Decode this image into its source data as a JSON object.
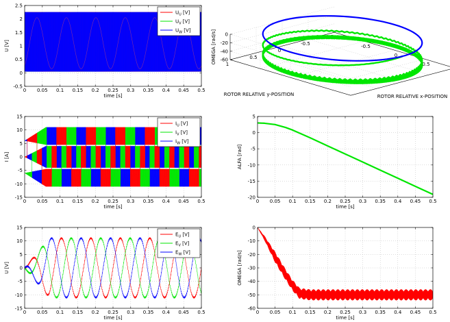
{
  "colors": {
    "red": "#ff0000",
    "green": "#00e600",
    "blue": "#0000ff",
    "purple": "#7d2aa8"
  },
  "chart_data": [
    {
      "id": "voltage",
      "type": "line",
      "ylabel": "U [V]",
      "xlabel": "time [s]",
      "xlim": [
        0,
        0.5
      ],
      "ylim": [
        -0.5,
        2.5
      ],
      "xticks": [
        0,
        0.05,
        0.1,
        0.15,
        0.2,
        0.25,
        0.3,
        0.35,
        0.4,
        0.45,
        0.5
      ],
      "xticklabels": [
        "0",
        "0.05",
        "0.1",
        "0.15",
        "0.2",
        "0.25",
        "0.3",
        "0.35",
        "0.4",
        "0.45",
        "0.5"
      ],
      "yticks": [
        -0.5,
        0,
        0.5,
        1,
        1.5,
        2,
        2.5
      ],
      "yticklabels": [
        "-0.5",
        "0",
        "0.5",
        "1",
        "1.5",
        "2",
        "2.5"
      ],
      "grid": true,
      "legend_position": "top-right",
      "series": [
        {
          "name": "U",
          "sub": "U",
          "unit": " [V]",
          "color": "#ff0000",
          "switching_low": 0.05,
          "switching_high": 2.25,
          "envelope_peak": 1.15
        },
        {
          "name": "U",
          "sub": "V",
          "unit": " [V]",
          "color": "#00e600",
          "switching_low": 0.05,
          "switching_high": 2.25,
          "envelope_peak": 1.15
        },
        {
          "name": "U",
          "sub": "W",
          "unit": " [V]",
          "color": "#0000ff",
          "switching_low": 0.05,
          "switching_high": 2.25,
          "envelope_peak": 1.15
        }
      ]
    },
    {
      "id": "omega3d",
      "type": "line3d",
      "zlabel": "OMEGA [rad/s]",
      "ylabel": "ROTOR RELATIVE y-POSITION",
      "xlabel": "ROTOR RELATIVE x-POSITION",
      "zticks": [
        0,
        -20,
        -40,
        -60
      ],
      "zticklabels": [
        "0",
        "-20",
        "-40",
        "-60"
      ],
      "yticks": [
        1,
        0.5,
        0,
        -0.5,
        -1
      ],
      "yticklabels": [
        "1",
        "0.5",
        "0",
        "-0.5",
        "-1"
      ],
      "xticks": [
        -1,
        -0.5,
        0,
        0.5,
        1
      ],
      "xticklabels": [
        "-1",
        "-0.5",
        "0",
        "0.5",
        "1"
      ],
      "series": [
        {
          "color": "#0000ff",
          "omega": 0
        },
        {
          "color": "#00e600",
          "omega_settle": -50,
          "omega_ripple": 6
        }
      ]
    },
    {
      "id": "current",
      "type": "line",
      "ylabel": "I [A]",
      "xlabel": "time [s]",
      "xlim": [
        0,
        0.5
      ],
      "ylim": [
        -15,
        15
      ],
      "xticks": [
        0,
        0.05,
        0.1,
        0.15,
        0.2,
        0.25,
        0.3,
        0.35,
        0.4,
        0.45,
        0.5
      ],
      "xticklabels": [
        "0",
        "0.05",
        "0.1",
        "0.15",
        "0.2",
        "0.25",
        "0.3",
        "0.35",
        "0.4",
        "0.45",
        "0.5"
      ],
      "yticks": [
        -15,
        -10,
        -5,
        0,
        5,
        10,
        15
      ],
      "yticklabels": [
        "-15",
        "-10",
        "-5",
        "0",
        "5",
        "10",
        "15"
      ],
      "grid": true,
      "legend_position": "top-right",
      "series": [
        {
          "name": "I",
          "sub": "U",
          "unit": " [V]",
          "color": "#ff0000",
          "peak": 12,
          "plateau": 6
        },
        {
          "name": "I",
          "sub": "V",
          "unit": " [V]",
          "color": "#00e600",
          "peak": 12,
          "plateau": 6
        },
        {
          "name": "I",
          "sub": "W",
          "unit": " [V]",
          "color": "#0000ff",
          "peak": 12,
          "plateau": 6
        }
      ]
    },
    {
      "id": "alfa",
      "type": "line",
      "ylabel": "ALFA [rad]",
      "xlabel": "time [s]",
      "xlim": [
        0,
        0.5
      ],
      "ylim": [
        -20,
        5
      ],
      "xticks": [
        0,
        0.05,
        0.1,
        0.15,
        0.2,
        0.25,
        0.3,
        0.35,
        0.4,
        0.45,
        0.5
      ],
      "xticklabels": [
        "0",
        "0.05",
        "0.1",
        "0.15",
        "0.2",
        "0.25",
        "0.3",
        "0.35",
        "0.4",
        "0.45",
        "0.5"
      ],
      "yticks": [
        -20,
        -15,
        -10,
        -5,
        0,
        5
      ],
      "yticklabels": [
        "-20",
        "-15",
        "-10",
        "-5",
        "0",
        "5"
      ],
      "grid": true,
      "series": [
        {
          "color": "#00e600",
          "x": [
            0,
            0.02,
            0.05,
            0.08,
            0.1,
            0.15,
            0.2,
            0.25,
            0.3,
            0.35,
            0.4,
            0.45,
            0.5
          ],
          "y": [
            3,
            2.9,
            2.5,
            1.6,
            0.8,
            -1.6,
            -4.1,
            -6.6,
            -9.1,
            -11.6,
            -14.1,
            -16.6,
            -19.1
          ]
        }
      ]
    },
    {
      "id": "emf",
      "type": "line",
      "ylabel": "U [V]",
      "xlabel": "time [s]",
      "xlim": [
        0,
        0.5
      ],
      "ylim": [
        -15,
        15
      ],
      "xticks": [
        0,
        0.05,
        0.1,
        0.15,
        0.2,
        0.25,
        0.3,
        0.35,
        0.4,
        0.45,
        0.5
      ],
      "xticklabels": [
        "0",
        "0.05",
        "0.1",
        "0.15",
        "0.2",
        "0.25",
        "0.3",
        "0.35",
        "0.4",
        "0.45",
        "0.5"
      ],
      "yticks": [
        -15,
        -10,
        -5,
        0,
        5,
        10,
        15
      ],
      "yticklabels": [
        "-15",
        "-10",
        "-5",
        "0",
        "5",
        "10",
        "15"
      ],
      "grid": true,
      "legend_position": "top-right",
      "series": [
        {
          "name": "E",
          "sub": "U",
          "unit": " [V]",
          "color": "#ff0000",
          "amplitude": 11,
          "phase_deg": 0
        },
        {
          "name": "E",
          "sub": "V",
          "unit": " [V]",
          "color": "#00e600",
          "amplitude": 11,
          "phase_deg": -120
        },
        {
          "name": "E",
          "sub": "W",
          "unit": " [V]",
          "color": "#0000ff",
          "amplitude": 11,
          "phase_deg": 120
        }
      ]
    },
    {
      "id": "omega",
      "type": "line",
      "ylabel": "OMEGA [rad/s]",
      "xlabel": "time [s]",
      "xlim": [
        0,
        0.5
      ],
      "ylim": [
        -60,
        0
      ],
      "xticks": [
        0,
        0.05,
        0.1,
        0.15,
        0.2,
        0.25,
        0.3,
        0.35,
        0.4,
        0.45,
        0.5
      ],
      "xticklabels": [
        "0",
        "0.05",
        "0.1",
        "0.15",
        "0.2",
        "0.25",
        "0.3",
        "0.35",
        "0.4",
        "0.45",
        "0.5"
      ],
      "yticks": [
        -60,
        -50,
        -40,
        -30,
        -20,
        -10,
        0
      ],
      "yticklabels": [
        "-60",
        "-50",
        "-40",
        "-30",
        "-20",
        "-10",
        "0"
      ],
      "grid": true,
      "series": [
        {
          "color": "#ff0000",
          "x": [
            0,
            0.02,
            0.05,
            0.08,
            0.1,
            0.12,
            0.15,
            0.2,
            0.3,
            0.4,
            0.5
          ],
          "y": [
            0,
            -8,
            -22,
            -35,
            -43,
            -49,
            -50,
            -50,
            -50,
            -50,
            -50
          ],
          "ripple": 4
        }
      ]
    }
  ]
}
